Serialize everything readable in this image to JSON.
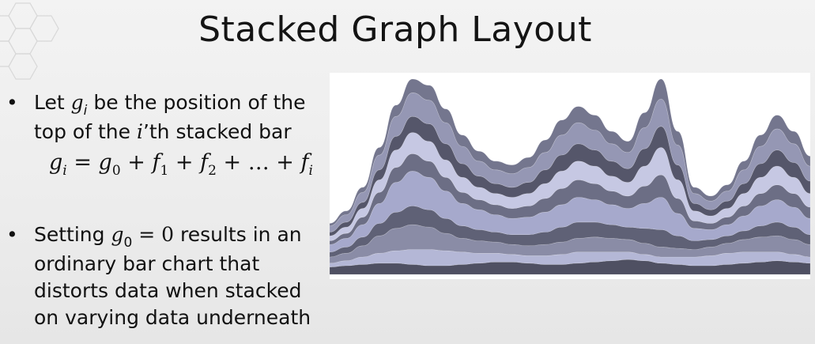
{
  "slide": {
    "title": "Stacked Graph Layout"
  },
  "bullets": [
    {
      "before_var": "Let ",
      "var": "g",
      "var_sub": "i",
      "after_var": " be the position of the",
      "line2_before": "top of the ",
      "line2_var": "i",
      "line2_after": "’th stacked bar"
    },
    {
      "before_var": "Setting ",
      "var": "g",
      "var_sub": "0",
      "equals": " = 0",
      "after_var": " results in an",
      "line2": "ordinary bar chart that",
      "line3": "distorts data when stacked",
      "line4": "on varying data underneath"
    }
  ],
  "formula": {
    "lhs": "g",
    "lhs_sub": "i",
    "eq": " = ",
    "t0": "g",
    "t0_sub": "0",
    "p1": " + ",
    "t1": "f",
    "t1_sub": "1",
    "p2": " + ",
    "t2": "f",
    "t2_sub": "2",
    "p3": " + … + ",
    "tn": "f",
    "tn_sub": "i"
  },
  "colors": {
    "background": "#efefef",
    "dark_layer": "#5a5b6e",
    "mid_layer": "#7d7f96",
    "light_layer": "#a3a6c8",
    "pale_layer": "#c2c5e0"
  },
  "chart_data": {
    "type": "area",
    "layout": "streamgraph",
    "n_points": 30,
    "series": [
      {
        "color": "#4f5062",
        "values": [
          6,
          7,
          8,
          9,
          9,
          8,
          7,
          7,
          8,
          9,
          10,
          10,
          9,
          8,
          8,
          9,
          10,
          11,
          12,
          11,
          9,
          8,
          7,
          7,
          8,
          9,
          10,
          11,
          10,
          9
        ]
      },
      {
        "color": "#b4b7d6",
        "values": [
          3,
          4,
          6,
          8,
          10,
          12,
          13,
          12,
          10,
          8,
          7,
          6,
          6,
          7,
          8,
          9,
          8,
          7,
          6,
          5,
          5,
          6,
          7,
          8,
          9,
          9,
          8,
          7,
          6,
          5
        ]
      },
      {
        "color": "#8a8ca6",
        "values": [
          5,
          6,
          9,
          14,
          18,
          20,
          18,
          14,
          11,
          10,
          9,
          8,
          8,
          9,
          10,
          11,
          12,
          11,
          10,
          9,
          8,
          7,
          6,
          7,
          8,
          10,
          12,
          13,
          12,
          10
        ]
      },
      {
        "color": "#5f6176",
        "values": [
          4,
          5,
          7,
          10,
          13,
          15,
          14,
          12,
          10,
          9,
          8,
          8,
          9,
          10,
          12,
          13,
          12,
          11,
          10,
          12,
          14,
          10,
          7,
          6,
          6,
          7,
          9,
          11,
          10,
          8
        ]
      },
      {
        "color": "#a6a9cc",
        "values": [
          6,
          7,
          10,
          16,
          24,
          28,
          26,
          22,
          18,
          16,
          14,
          13,
          14,
          16,
          18,
          20,
          18,
          16,
          15,
          20,
          26,
          18,
          10,
          8,
          9,
          12,
          16,
          18,
          16,
          13
        ]
      },
      {
        "color": "#6c6e85",
        "values": [
          3,
          4,
          6,
          9,
          12,
          14,
          13,
          11,
          9,
          8,
          8,
          8,
          9,
          11,
          13,
          14,
          13,
          11,
          10,
          14,
          18,
          12,
          6,
          5,
          6,
          8,
          10,
          12,
          11,
          9
        ]
      },
      {
        "color": "#c6c8e3",
        "values": [
          4,
          5,
          7,
          10,
          14,
          17,
          16,
          14,
          12,
          10,
          9,
          9,
          10,
          12,
          14,
          15,
          14,
          12,
          11,
          16,
          22,
          15,
          8,
          6,
          7,
          10,
          13,
          15,
          13,
          11
        ]
      },
      {
        "color": "#55566a",
        "values": [
          3,
          4,
          5,
          8,
          11,
          13,
          14,
          13,
          11,
          9,
          8,
          8,
          9,
          11,
          13,
          14,
          13,
          12,
          11,
          14,
          17,
          12,
          6,
          5,
          6,
          8,
          11,
          13,
          12,
          10
        ]
      },
      {
        "color": "#9597b4",
        "values": [
          5,
          6,
          8,
          12,
          16,
          19,
          19,
          17,
          14,
          12,
          11,
          11,
          12,
          14,
          16,
          17,
          16,
          14,
          13,
          17,
          22,
          16,
          8,
          7,
          8,
          11,
          14,
          17,
          15,
          12
        ]
      },
      {
        "color": "#74768e",
        "values": [
          2,
          3,
          4,
          6,
          9,
          11,
          12,
          11,
          9,
          8,
          7,
          7,
          8,
          10,
          12,
          13,
          12,
          10,
          9,
          12,
          16,
          11,
          5,
          4,
          5,
          7,
          9,
          11,
          10,
          8
        ]
      }
    ]
  }
}
